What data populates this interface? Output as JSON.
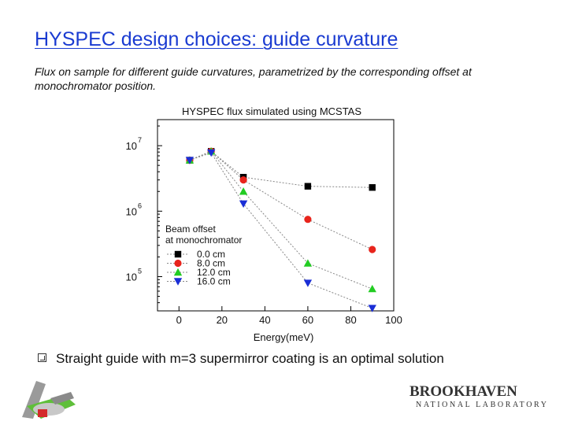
{
  "slide": {
    "title": "HYSPEC design choices: guide curvature",
    "subtitle": "Flux on sample for different guide curvatures, parametrized by the corresponding offset at monochromator position.",
    "bullet": "Straight guide with m=3 supermirror coating is an optimal solution"
  },
  "logo": {
    "name": "BROOKHAVEN",
    "sub": "NATIONAL LABORATORY"
  },
  "chart_data": {
    "type": "scatter",
    "title": "HYSPEC flux simulated using MCSTAS",
    "xlabel": "Energy(meV)",
    "ylabel": "",
    "xlim": [
      -10,
      100
    ],
    "ylim": [
      30000,
      25000000
    ],
    "yscale": "log",
    "xticks": [
      0,
      20,
      40,
      60,
      80,
      100
    ],
    "yticks": [
      {
        "value": 100000,
        "label": "10",
        "exp": "5"
      },
      {
        "value": 1000000,
        "label": "10",
        "exp": "6"
      },
      {
        "value": 10000000,
        "label": "10",
        "exp": "7"
      }
    ],
    "legend_title": [
      "Beam offset",
      "at monochromator"
    ],
    "legend_position": "bottom-left",
    "grid": false,
    "series": [
      {
        "name": "0.0 cm",
        "marker": "square",
        "color": "#000000",
        "x": [
          5,
          15,
          30,
          60,
          90
        ],
        "y": [
          6000000,
          8200000,
          3300000,
          2400000,
          2300000
        ]
      },
      {
        "name": "8.0 cm",
        "marker": "circle",
        "color": "#e8241c",
        "x": [
          5,
          15,
          30,
          60,
          90
        ],
        "y": [
          6000000,
          8200000,
          3000000,
          750000,
          260000
        ]
      },
      {
        "name": "12.0 cm",
        "marker": "triangle-up",
        "color": "#22cc22",
        "x": [
          5,
          15,
          30,
          60,
          90
        ],
        "y": [
          6000000,
          8200000,
          2000000,
          160000,
          65000
        ]
      },
      {
        "name": "16.0 cm",
        "marker": "triangle-down",
        "color": "#1a2ed6",
        "x": [
          5,
          15,
          30,
          60,
          90
        ],
        "y": [
          6000000,
          7800000,
          1300000,
          80000,
          33000
        ]
      }
    ]
  }
}
